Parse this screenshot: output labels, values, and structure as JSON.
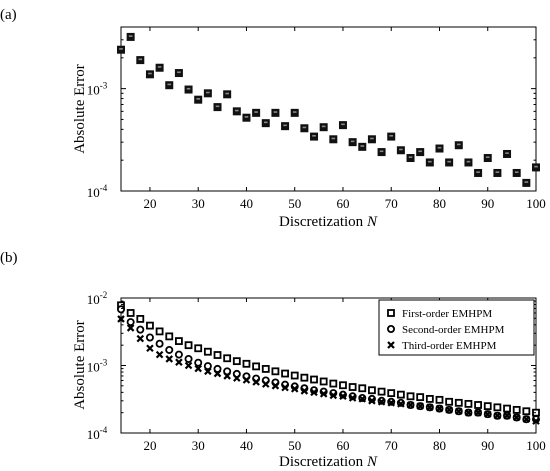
{
  "chart_data": [
    {
      "panel_label": "(a)",
      "type": "scatter",
      "xlabel": "Discretization",
      "xlabel_var": "N",
      "ylabel": "Absolute Error",
      "xlim": [
        14,
        100
      ],
      "ylim": [
        0.0001,
        0.004
      ],
      "yscale": "log",
      "x_ticks": [
        20,
        30,
        40,
        50,
        60,
        70,
        80,
        90,
        100
      ],
      "y_ticks": [
        {
          "value": 0.001,
          "base": "10",
          "exp": "-3"
        },
        {
          "value": 0.0001,
          "base": "10",
          "exp": "-4"
        }
      ],
      "grid": false,
      "series": [
        {
          "marker": "square-filled",
          "points": [
            [
              14,
              0.0024
            ],
            [
              16,
              0.0032
            ],
            [
              18,
              0.0019
            ],
            [
              20,
              0.00138
            ],
            [
              22,
              0.0016
            ],
            [
              24,
              0.00108
            ],
            [
              26,
              0.00142
            ],
            [
              28,
              0.00098
            ],
            [
              30,
              0.00078
            ],
            [
              32,
              0.0009
            ],
            [
              34,
              0.00066
            ],
            [
              36,
              0.00088
            ],
            [
              38,
              0.0006
            ],
            [
              40,
              0.00052
            ],
            [
              42,
              0.00058
            ],
            [
              44,
              0.00046
            ],
            [
              46,
              0.00058
            ],
            [
              48,
              0.00043
            ],
            [
              50,
              0.00058
            ],
            [
              52,
              0.00041
            ],
            [
              54,
              0.00034
            ],
            [
              56,
              0.00042
            ],
            [
              58,
              0.00032
            ],
            [
              60,
              0.00044
            ],
            [
              62,
              0.0003
            ],
            [
              64,
              0.00027
            ],
            [
              66,
              0.00032
            ],
            [
              68,
              0.00024
            ],
            [
              70,
              0.00034
            ],
            [
              72,
              0.00025
            ],
            [
              74,
              0.00021
            ],
            [
              76,
              0.00024
            ],
            [
              78,
              0.00019
            ],
            [
              80,
              0.00026
            ],
            [
              82,
              0.00019
            ],
            [
              84,
              0.00028
            ],
            [
              86,
              0.00019
            ],
            [
              88,
              0.00015
            ],
            [
              90,
              0.00021
            ],
            [
              92,
              0.00015
            ],
            [
              94,
              0.00023
            ],
            [
              96,
              0.00015
            ],
            [
              98,
              0.00012
            ],
            [
              100,
              0.00017
            ]
          ]
        }
      ]
    },
    {
      "panel_label": "(b)",
      "type": "scatter",
      "xlabel": "Discretization",
      "xlabel_var": "N",
      "ylabel": "Absolute Error",
      "xlim": [
        14,
        100
      ],
      "ylim": [
        0.0001,
        0.01
      ],
      "yscale": "log",
      "x_ticks": [
        20,
        30,
        40,
        50,
        60,
        70,
        80,
        90,
        100
      ],
      "y_ticks": [
        {
          "value": 0.01,
          "base": "10",
          "exp": "-2"
        },
        {
          "value": 0.001,
          "base": "10",
          "exp": "-3"
        },
        {
          "value": 0.0001,
          "base": "10",
          "exp": "-4"
        }
      ],
      "grid": false,
      "legend_position": "top-right",
      "series": [
        {
          "name": "First-order EMHPM",
          "marker": "square-open",
          "points": [
            [
              14,
              0.0078
            ],
            [
              16,
              0.006
            ],
            [
              18,
              0.0049
            ],
            [
              20,
              0.0039
            ],
            [
              22,
              0.0032
            ],
            [
              24,
              0.0027
            ],
            [
              26,
              0.0023
            ],
            [
              28,
              0.002
            ],
            [
              30,
              0.0018
            ],
            [
              32,
              0.0016
            ],
            [
              34,
              0.00143
            ],
            [
              36,
              0.00128
            ],
            [
              38,
              0.00116
            ],
            [
              40,
              0.00106
            ],
            [
              42,
              0.00097
            ],
            [
              44,
              0.00089
            ],
            [
              46,
              0.00082
            ],
            [
              48,
              0.00076
            ],
            [
              50,
              0.00071
            ],
            [
              52,
              0.00066
            ],
            [
              54,
              0.00062
            ],
            [
              56,
              0.00058
            ],
            [
              58,
              0.00054
            ],
            [
              60,
              0.00051
            ],
            [
              62,
              0.00048
            ],
            [
              64,
              0.00046
            ],
            [
              66,
              0.00043
            ],
            [
              68,
              0.00041
            ],
            [
              70,
              0.00039
            ],
            [
              72,
              0.00037
            ],
            [
              74,
              0.00035
            ],
            [
              76,
              0.00034
            ],
            [
              78,
              0.00032
            ],
            [
              80,
              0.00031
            ],
            [
              82,
              0.00029
            ],
            [
              84,
              0.00028
            ],
            [
              86,
              0.00027
            ],
            [
              88,
              0.00026
            ],
            [
              90,
              0.00025
            ],
            [
              92,
              0.00024
            ],
            [
              94,
              0.00023
            ],
            [
              96,
              0.00022
            ],
            [
              98,
              0.00021
            ],
            [
              100,
              0.0002
            ]
          ]
        },
        {
          "name": "Second-order EMHPM",
          "marker": "circle-open",
          "points": [
            [
              14,
              0.0068
            ],
            [
              16,
              0.0044
            ],
            [
              18,
              0.0034
            ],
            [
              20,
              0.0026
            ],
            [
              22,
              0.0021
            ],
            [
              24,
              0.0017
            ],
            [
              26,
              0.00145
            ],
            [
              28,
              0.00125
            ],
            [
              30,
              0.0011
            ],
            [
              32,
              0.00098
            ],
            [
              34,
              0.00089
            ],
            [
              36,
              0.00082
            ],
            [
              38,
              0.00075
            ],
            [
              40,
              0.00069
            ],
            [
              42,
              0.00064
            ],
            [
              44,
              0.0006
            ],
            [
              46,
              0.00056
            ],
            [
              48,
              0.00052
            ],
            [
              50,
              0.00049
            ],
            [
              52,
              0.00046
            ],
            [
              54,
              0.00043
            ],
            [
              56,
              0.00041
            ],
            [
              58,
              0.00039
            ],
            [
              60,
              0.00037
            ],
            [
              62,
              0.00035
            ],
            [
              64,
              0.00033
            ],
            [
              66,
              0.00032
            ],
            [
              68,
              0.0003
            ],
            [
              70,
              0.00029
            ],
            [
              72,
              0.00028
            ],
            [
              74,
              0.00026
            ],
            [
              76,
              0.00025
            ],
            [
              78,
              0.00024
            ],
            [
              80,
              0.00023
            ],
            [
              82,
              0.00022
            ],
            [
              84,
              0.00021
            ],
            [
              86,
              0.0002
            ],
            [
              88,
              0.0002
            ],
            [
              90,
              0.00019
            ],
            [
              92,
              0.00018
            ],
            [
              94,
              0.00018
            ],
            [
              96,
              0.00017
            ],
            [
              98,
              0.00016
            ],
            [
              100,
              0.00016
            ]
          ]
        },
        {
          "name": "Third-order EMHPM",
          "marker": "x-filled",
          "points": [
            [
              14,
              0.0049
            ],
            [
              16,
              0.0036
            ],
            [
              18,
              0.0025
            ],
            [
              20,
              0.0018
            ],
            [
              22,
              0.00145
            ],
            [
              24,
              0.00125
            ],
            [
              26,
              0.00112
            ],
            [
              28,
              0.001
            ],
            [
              30,
              0.0009
            ],
            [
              32,
              0.00082
            ],
            [
              34,
              0.00076
            ],
            [
              36,
              0.0007
            ],
            [
              38,
              0.00065
            ],
            [
              40,
              0.00061
            ],
            [
              42,
              0.00057
            ],
            [
              44,
              0.00053
            ],
            [
              46,
              0.0005
            ],
            [
              48,
              0.00047
            ],
            [
              50,
              0.00045
            ],
            [
              52,
              0.00042
            ],
            [
              54,
              0.0004
            ],
            [
              56,
              0.00038
            ],
            [
              58,
              0.00036
            ],
            [
              60,
              0.00035
            ],
            [
              62,
              0.00033
            ],
            [
              64,
              0.00032
            ],
            [
              66,
              0.0003
            ],
            [
              68,
              0.00029
            ],
            [
              70,
              0.00028
            ],
            [
              72,
              0.00027
            ],
            [
              74,
              0.00026
            ],
            [
              76,
              0.00025
            ],
            [
              78,
              0.00024
            ],
            [
              80,
              0.00023
            ],
            [
              82,
              0.00022
            ],
            [
              84,
              0.00021
            ],
            [
              86,
              0.0002
            ],
            [
              88,
              0.0002
            ],
            [
              90,
              0.00019
            ],
            [
              92,
              0.00018
            ],
            [
              94,
              0.00018
            ],
            [
              96,
              0.00017
            ],
            [
              98,
              0.00016
            ],
            [
              100,
              0.00015
            ]
          ]
        }
      ]
    }
  ]
}
